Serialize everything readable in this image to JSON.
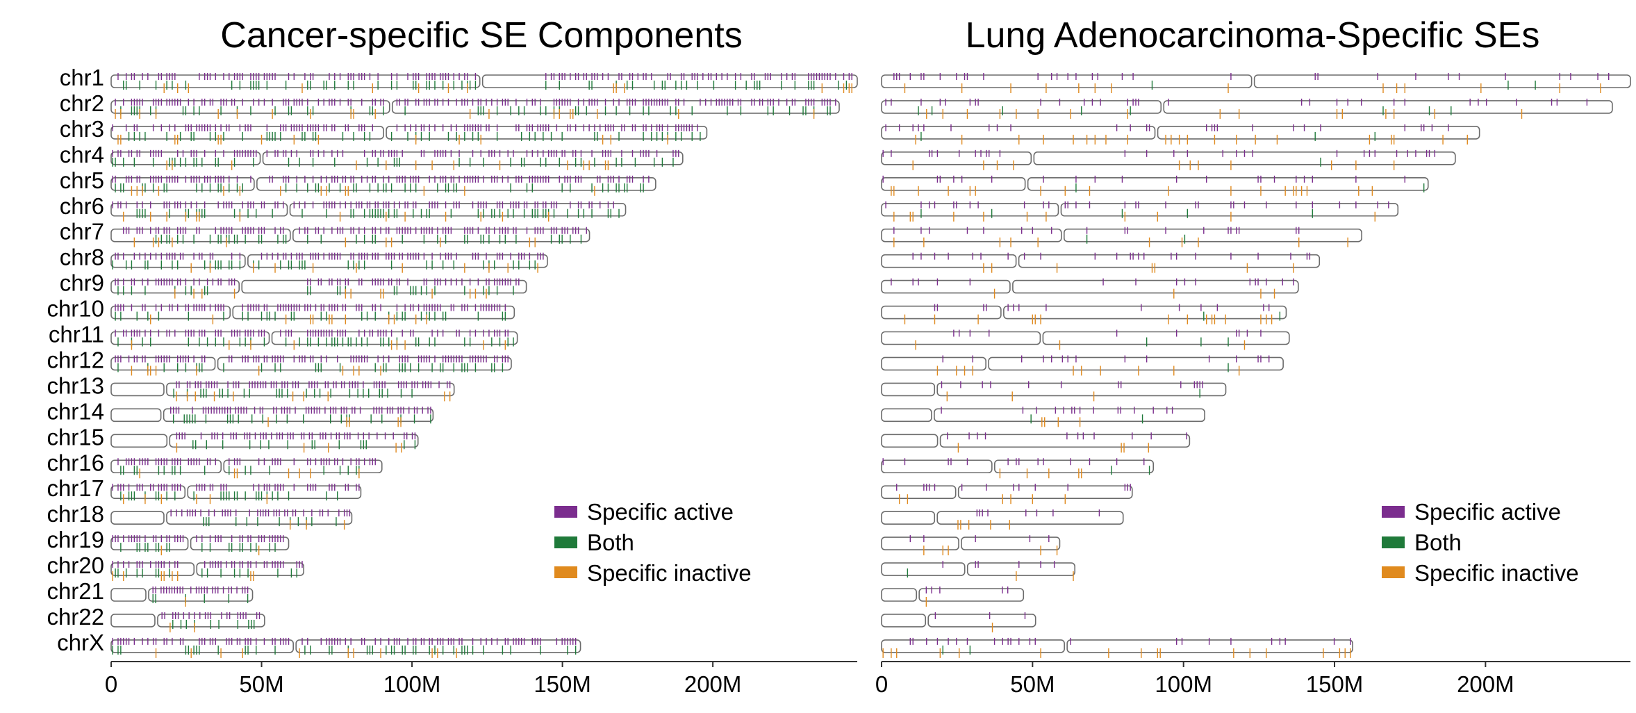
{
  "chart_data": [
    {
      "type": "ideogram",
      "title": "Cancer-specific SE Components",
      "x_ticks": [
        "0",
        "50M",
        "100M",
        "150M",
        "200M"
      ],
      "x_tick_values_mb": [
        0,
        50,
        100,
        150,
        200
      ],
      "xlim_mb": [
        0,
        248
      ],
      "legend_position": "bottom-right",
      "legend": [
        {
          "label": "Specific active",
          "color": "#7b2d8e"
        },
        {
          "label": "Both",
          "color": "#1f7a3a"
        },
        {
          "label": "Specific inactive",
          "color": "#e08a1e"
        }
      ],
      "density": {
        "active": 1.0,
        "both": 0.45,
        "inactive": 0.12
      }
    },
    {
      "type": "ideogram",
      "title": "Lung Adenocarcinoma-Specific SEs",
      "x_ticks": [
        "0",
        "50M",
        "100M",
        "150M",
        "200M"
      ],
      "x_tick_values_mb": [
        0,
        50,
        100,
        150,
        200
      ],
      "xlim_mb": [
        0,
        248
      ],
      "legend_position": "bottom-right",
      "legend": [
        {
          "label": "Specific active",
          "color": "#7b2d8e"
        },
        {
          "label": "Both",
          "color": "#1f7a3a"
        },
        {
          "label": "Specific inactive",
          "color": "#e08a1e"
        }
      ],
      "density": {
        "active": 0.22,
        "both": 0.02,
        "inactive": 0.12
      }
    }
  ],
  "chromosomes": [
    {
      "name": "chr1",
      "length_mb": 248,
      "centromere_mb": 123
    },
    {
      "name": "chr2",
      "length_mb": 242,
      "centromere_mb": 93
    },
    {
      "name": "chr3",
      "length_mb": 198,
      "centromere_mb": 91
    },
    {
      "name": "chr4",
      "length_mb": 190,
      "centromere_mb": 50
    },
    {
      "name": "chr5",
      "length_mb": 181,
      "centromere_mb": 48
    },
    {
      "name": "chr6",
      "length_mb": 171,
      "centromere_mb": 59
    },
    {
      "name": "chr7",
      "length_mb": 159,
      "centromere_mb": 60
    },
    {
      "name": "chr8",
      "length_mb": 145,
      "centromere_mb": 45
    },
    {
      "name": "chr9",
      "length_mb": 138,
      "centromere_mb": 43
    },
    {
      "name": "chr10",
      "length_mb": 134,
      "centromere_mb": 40
    },
    {
      "name": "chr11",
      "length_mb": 135,
      "centromere_mb": 53
    },
    {
      "name": "chr12",
      "length_mb": 133,
      "centromere_mb": 35
    },
    {
      "name": "chr13",
      "length_mb": 114,
      "centromere_mb": 18
    },
    {
      "name": "chr14",
      "length_mb": 107,
      "centromere_mb": 17
    },
    {
      "name": "chr15",
      "length_mb": 102,
      "centromere_mb": 19
    },
    {
      "name": "chr16",
      "length_mb": 90,
      "centromere_mb": 37
    },
    {
      "name": "chr17",
      "length_mb": 83,
      "centromere_mb": 25
    },
    {
      "name": "chr18",
      "length_mb": 80,
      "centromere_mb": 18
    },
    {
      "name": "chr19",
      "length_mb": 59,
      "centromere_mb": 26
    },
    {
      "name": "chr20",
      "length_mb": 64,
      "centromere_mb": 28
    },
    {
      "name": "chr21",
      "length_mb": 47,
      "centromere_mb": 12
    },
    {
      "name": "chr22",
      "length_mb": 51,
      "centromere_mb": 15
    },
    {
      "name": "chrX",
      "length_mb": 156,
      "centromere_mb": 61
    }
  ]
}
